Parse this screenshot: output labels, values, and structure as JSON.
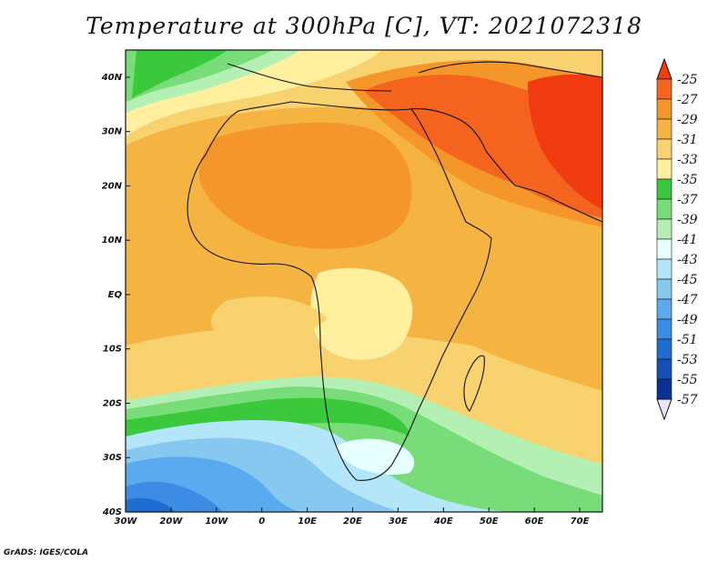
{
  "title": "Temperature at 300hPa [C], VT: 2021072318",
  "credit": "GrADS: IGES/COLA",
  "map": {
    "lon_range": [
      -30,
      75
    ],
    "lat_range": [
      -40,
      45
    ],
    "x_ticks": [
      "30W",
      "20W",
      "10W",
      "0",
      "10E",
      "20E",
      "30E",
      "40E",
      "50E",
      "60E",
      "70E"
    ],
    "y_ticks": [
      "40S",
      "30S",
      "20S",
      "10S",
      "EQ",
      "10N",
      "20N",
      "30N",
      "40N"
    ]
  },
  "colorbar": {
    "labels": [
      "-25",
      "-27",
      "-29",
      "-31",
      "-33",
      "-35",
      "-37",
      "-39",
      "-41",
      "-43",
      "-45",
      "-47",
      "-49",
      "-51",
      "-53",
      "-55",
      "-57"
    ],
    "colors": [
      "#f03c10",
      "#f5641e",
      "#f5962a",
      "#f5b441",
      "#f8d26e",
      "#fff0a0",
      "#3cc83c",
      "#78dc78",
      "#b4f0b4",
      "#e6ffff",
      "#b4e6fa",
      "#87c8f0",
      "#5aaaf0",
      "#3c8ce6",
      "#1e6ed2",
      "#1450b4",
      "#0a3296",
      "#141478",
      "#e6e6fa"
    ]
  }
}
